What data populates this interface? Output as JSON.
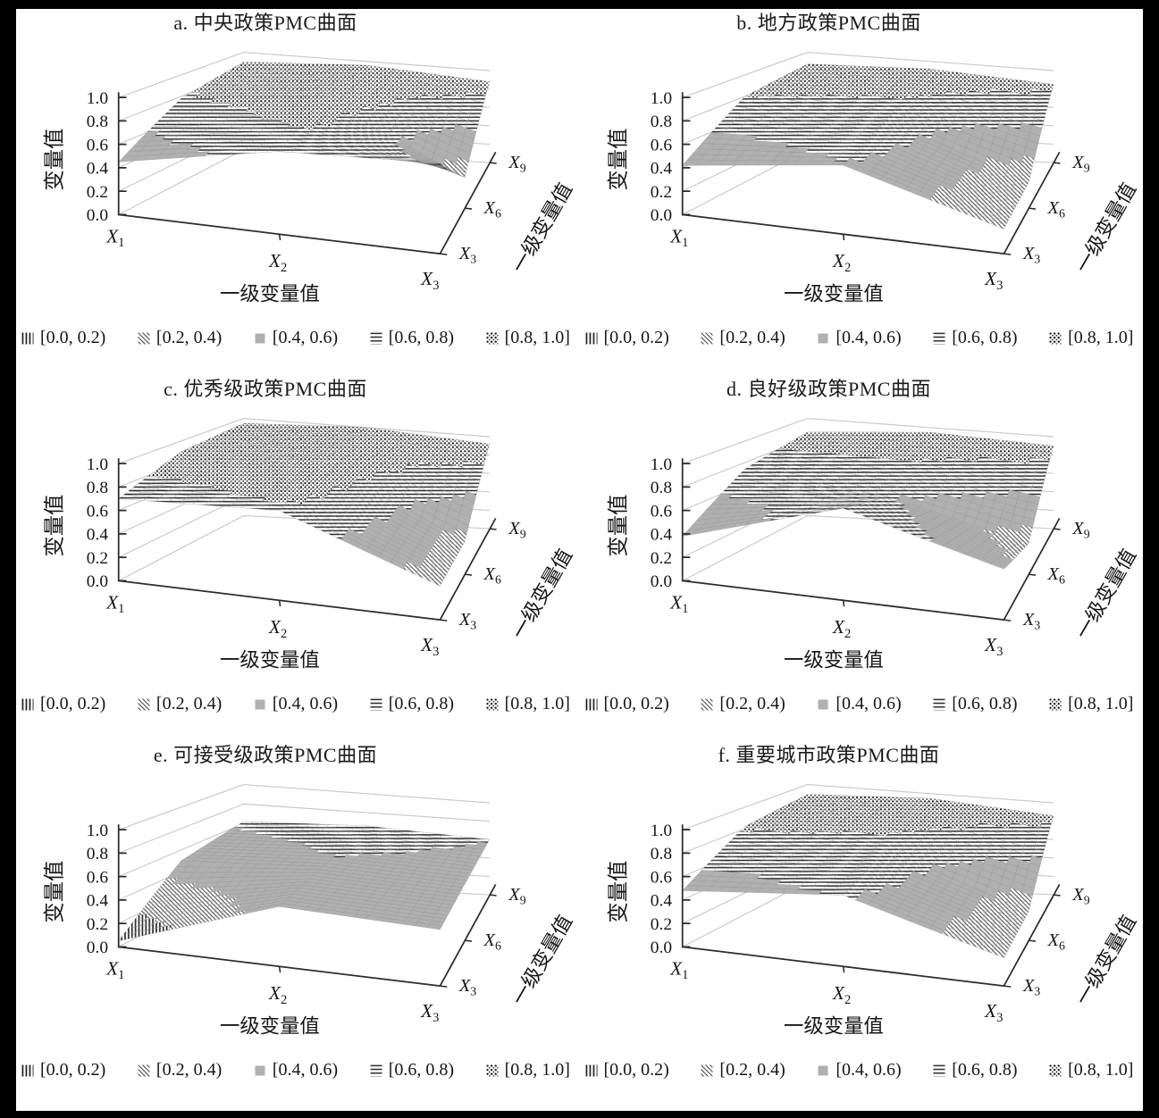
{
  "figure": {
    "background": "#000000",
    "panel_background": "#ffffff",
    "gridline_color": "#c9c9c9",
    "axis_color": "#2b2b2b",
    "solid_band_color": "#b0b0b0"
  },
  "legend": {
    "items": [
      {
        "pattern": "vertical-lines",
        "label": "[0.0, 0.2)"
      },
      {
        "pattern": "diagonal-lines",
        "label": "[0.2, 0.4)"
      },
      {
        "pattern": "solid-gray",
        "label": "[0.4, 0.6)"
      },
      {
        "pattern": "horizontal-lines",
        "label": "[0.6, 0.8)"
      },
      {
        "pattern": "dots",
        "label": "[0.8, 1.0]"
      }
    ]
  },
  "chart_data": [
    {
      "type": "surface",
      "panel": "a",
      "title": "a. 中央政策PMC曲面",
      "value_axis": {
        "label": "变量值",
        "range": [
          0,
          1
        ],
        "ticks": [
          "0.0",
          "0.2",
          "0.4",
          "0.6",
          "0.8",
          "1.0"
        ]
      },
      "x_axis": {
        "label": "一级变量值",
        "ticks": [
          {
            "t": "X",
            "s": "1"
          },
          {
            "t": "X",
            "s": "2"
          },
          {
            "t": "X",
            "s": "3"
          }
        ]
      },
      "depth_axis": {
        "label": "一级变量值",
        "ticks": [
          {
            "t": "X",
            "s": "3"
          },
          {
            "t": "X",
            "s": "6"
          },
          {
            "t": "X",
            "s": "9"
          }
        ]
      },
      "bands": [
        "[0.0, 0.2)",
        "[0.2, 0.4)",
        "[0.4, 0.6)",
        "[0.6, 0.8)",
        "[0.8, 1.0]"
      ],
      "grid": true,
      "matrix_rows_front_to_back": [
        [
          0.45,
          0.72,
          0.8
        ],
        [
          0.78,
          0.92,
          0.3
        ],
        [
          0.9,
          0.96,
          0.88
        ]
      ]
    },
    {
      "type": "surface",
      "panel": "b",
      "title": "b. 地方政策PMC曲面",
      "value_axis": {
        "label": "变量值",
        "range": [
          0,
          1
        ],
        "ticks": [
          "0.0",
          "0.2",
          "0.4",
          "0.6",
          "0.8",
          "1.0"
        ]
      },
      "x_axis": {
        "label": "一级变量值",
        "ticks": [
          {
            "t": "X",
            "s": "1"
          },
          {
            "t": "X",
            "s": "2"
          },
          {
            "t": "X",
            "s": "3"
          }
        ]
      },
      "depth_axis": {
        "label": "一级变量值",
        "ticks": [
          {
            "t": "X",
            "s": "3"
          },
          {
            "t": "X",
            "s": "6"
          },
          {
            "t": "X",
            "s": "9"
          }
        ]
      },
      "bands": [
        "[0.0, 0.2)",
        "[0.2, 0.4)",
        "[0.4, 0.6)",
        "[0.6, 0.8)",
        "[0.8, 1.0]"
      ],
      "grid": true,
      "matrix_rows_front_to_back": [
        [
          0.42,
          0.6,
          0.22
        ],
        [
          0.8,
          0.72,
          0.25
        ],
        [
          0.88,
          0.92,
          0.85
        ]
      ]
    },
    {
      "type": "surface",
      "panel": "c",
      "title": "c. 优秀级政策PMC曲面",
      "value_axis": {
        "label": "变量值",
        "range": [
          0,
          1
        ],
        "ticks": [
          "0.0",
          "0.2",
          "0.4",
          "0.6",
          "0.8",
          "1.0"
        ]
      },
      "x_axis": {
        "label": "一级变量值",
        "ticks": [
          {
            "t": "X",
            "s": "1"
          },
          {
            "t": "X",
            "s": "2"
          },
          {
            "t": "X",
            "s": "3"
          }
        ]
      },
      "depth_axis": {
        "label": "一级变量值",
        "ticks": [
          {
            "t": "X",
            "s": "3"
          },
          {
            "t": "X",
            "s": "6"
          },
          {
            "t": "X",
            "s": "9"
          }
        ]
      },
      "bands": [
        "[0.0, 0.2)",
        "[0.2, 0.4)",
        "[0.4, 0.6)",
        "[0.6, 0.8)",
        "[0.8, 1.0]"
      ],
      "grid": true,
      "matrix_rows_front_to_back": [
        [
          0.7,
          0.78,
          0.3
        ],
        [
          0.9,
          0.95,
          0.32
        ],
        [
          0.95,
          1.0,
          0.92
        ]
      ]
    },
    {
      "type": "surface",
      "panel": "d",
      "title": "d. 良好级政策PMC曲面",
      "value_axis": {
        "label": "变量值",
        "range": [
          0,
          1
        ],
        "ticks": [
          "0.0",
          "0.2",
          "0.4",
          "0.6",
          "0.8",
          "1.0"
        ]
      },
      "x_axis": {
        "label": "一级变量值",
        "ticks": [
          {
            "t": "X",
            "s": "1"
          },
          {
            "t": "X",
            "s": "2"
          },
          {
            "t": "X",
            "s": "3"
          }
        ]
      },
      "depth_axis": {
        "label": "一级变量值",
        "ticks": [
          {
            "t": "X",
            "s": "3"
          },
          {
            "t": "X",
            "s": "6"
          },
          {
            "t": "X",
            "s": "9"
          }
        ]
      },
      "bands": [
        "[0.0, 0.2)",
        "[0.2, 0.4)",
        "[0.4, 0.6)",
        "[0.6, 0.8)",
        "[0.8, 1.0]"
      ],
      "grid": true,
      "matrix_rows_front_to_back": [
        [
          0.38,
          0.8,
          0.45
        ],
        [
          0.74,
          0.62,
          0.3
        ],
        [
          0.86,
          0.95,
          0.9
        ]
      ]
    },
    {
      "type": "surface",
      "panel": "e",
      "title": "e. 可接受级政策PMC曲面",
      "value_axis": {
        "label": "变量值",
        "range": [
          0,
          1
        ],
        "ticks": [
          "0.0",
          "0.2",
          "0.4",
          "0.6",
          "0.8",
          "1.0"
        ]
      },
      "x_axis": {
        "label": "一级变量值",
        "ticks": [
          {
            "t": "X",
            "s": "1"
          },
          {
            "t": "X",
            "s": "2"
          },
          {
            "t": "X",
            "s": "3"
          }
        ]
      },
      "depth_axis": {
        "label": "一级变量值",
        "ticks": [
          {
            "t": "X",
            "s": "3"
          },
          {
            "t": "X",
            "s": "6"
          },
          {
            "t": "X",
            "s": "9"
          }
        ]
      },
      "bands": [
        "[0.0, 0.2)",
        "[0.2, 0.4)",
        "[0.4, 0.6)",
        "[0.6, 0.8)",
        "[0.8, 1.0]"
      ],
      "grid": true,
      "matrix_rows_front_to_back": [
        [
          0.05,
          0.52,
          0.5
        ],
        [
          0.5,
          0.58,
          0.55
        ],
        [
          0.62,
          0.66,
          0.6
        ]
      ]
    },
    {
      "type": "surface",
      "panel": "f",
      "title": "f. 重要城市政策PMC曲面",
      "value_axis": {
        "label": "变量值",
        "range": [
          0,
          1
        ],
        "ticks": [
          "0.0",
          "0.2",
          "0.4",
          "0.6",
          "0.8",
          "1.0"
        ]
      },
      "x_axis": {
        "label": "一级变量值",
        "ticks": [
          {
            "t": "X",
            "s": "1"
          },
          {
            "t": "X",
            "s": "2"
          },
          {
            "t": "X",
            "s": "3"
          }
        ]
      },
      "depth_axis": {
        "label": "一级变量值",
        "ticks": [
          {
            "t": "X",
            "s": "3"
          },
          {
            "t": "X",
            "s": "6"
          },
          {
            "t": "X",
            "s": "9"
          }
        ]
      },
      "bands": [
        "[0.0, 0.2)",
        "[0.2, 0.4)",
        "[0.4, 0.6)",
        "[0.6, 0.8)",
        "[0.8, 1.0]"
      ],
      "grid": true,
      "matrix_rows_front_to_back": [
        [
          0.48,
          0.62,
          0.25
        ],
        [
          0.82,
          0.74,
          0.28
        ],
        [
          0.9,
          0.95,
          0.86
        ]
      ]
    }
  ]
}
